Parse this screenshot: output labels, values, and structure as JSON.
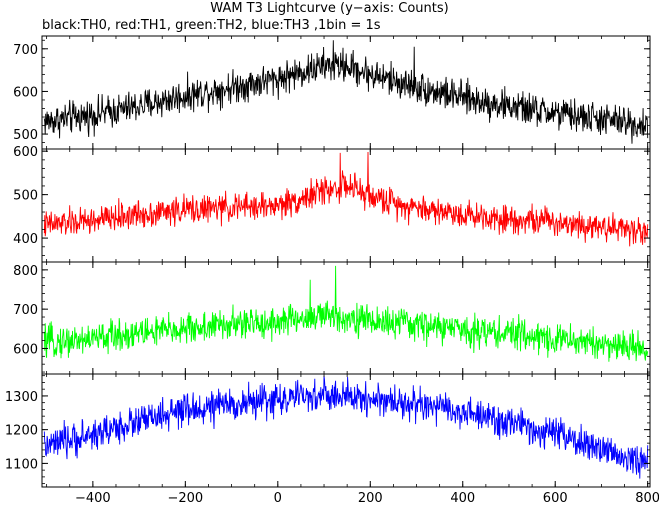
{
  "title": "WAM T3 Lightcurve (y−axis: Counts)",
  "subtitle": "black:TH0, red:TH1, green:TH2, blue:TH3 ,1bin = 1s",
  "chart_data": {
    "type": "line",
    "title": "WAM T3 Lightcurve (y−axis: Counts)",
    "subtitle": "black:TH0, red:TH1, green:TH2, blue:TH3 ,1bin = 1s",
    "xlim": [
      -510,
      805
    ],
    "x_ticks": [
      -400,
      -200,
      0,
      200,
      400,
      600,
      800
    ],
    "x_tick_labels": [
      "−400",
      "−200",
      "0",
      "200",
      "400",
      "600",
      "800"
    ],
    "bin_seconds": 1,
    "panels": [
      {
        "series": "TH0",
        "color": "#000000",
        "ylim": [
          465,
          730
        ],
        "y_ticks": [
          500,
          600,
          700
        ],
        "trend_x": [
          -500,
          -400,
          -300,
          -200,
          -100,
          0,
          50,
          100,
          150,
          200,
          300,
          400,
          500,
          600,
          700,
          800
        ],
        "trend_y": [
          530,
          545,
          565,
          590,
          610,
          630,
          645,
          660,
          660,
          640,
          610,
          585,
          565,
          548,
          535,
          520
        ],
        "noise_amplitude": 38,
        "peaks": [
          {
            "x": 120,
            "y": 720
          },
          {
            "x": 295,
            "y": 705
          }
        ]
      },
      {
        "series": "TH1",
        "color": "#ff0000",
        "ylim": [
          345,
          605
        ],
        "y_ticks": [
          400,
          500,
          600
        ],
        "trend_x": [
          -500,
          -400,
          -300,
          -200,
          -100,
          0,
          50,
          100,
          150,
          200,
          300,
          400,
          500,
          600,
          700,
          800
        ],
        "trend_y": [
          430,
          440,
          455,
          465,
          470,
          475,
          490,
          510,
          520,
          495,
          470,
          455,
          445,
          438,
          428,
          415
        ],
        "noise_amplitude": 32,
        "peaks": [
          {
            "x": 135,
            "y": 596
          },
          {
            "x": 195,
            "y": 598
          }
        ]
      },
      {
        "series": "TH2",
        "color": "#00ff00",
        "ylim": [
          535,
          820
        ],
        "y_ticks": [
          600,
          700,
          800
        ],
        "trend_x": [
          -500,
          -400,
          -300,
          -200,
          -100,
          0,
          50,
          100,
          150,
          200,
          300,
          400,
          500,
          600,
          700,
          800
        ],
        "trend_y": [
          615,
          625,
          640,
          650,
          660,
          668,
          675,
          682,
          680,
          670,
          660,
          648,
          638,
          625,
          612,
          600
        ],
        "noise_amplitude": 40,
        "peaks": [
          {
            "x": 125,
            "y": 810
          },
          {
            "x": 70,
            "y": 775
          }
        ]
      },
      {
        "series": "TH3",
        "color": "#0000ff",
        "ylim": [
          1030,
          1365
        ],
        "y_ticks": [
          1100,
          1200,
          1300
        ],
        "trend_x": [
          -500,
          -400,
          -300,
          -200,
          -100,
          0,
          100,
          200,
          300,
          400,
          500,
          600,
          700,
          800
        ],
        "trend_y": [
          1150,
          1185,
          1225,
          1255,
          1275,
          1290,
          1300,
          1292,
          1275,
          1250,
          1220,
          1185,
          1140,
          1100
        ],
        "noise_amplitude": 48,
        "peaks": [
          {
            "x": 100,
            "y": 1360
          }
        ]
      }
    ]
  }
}
